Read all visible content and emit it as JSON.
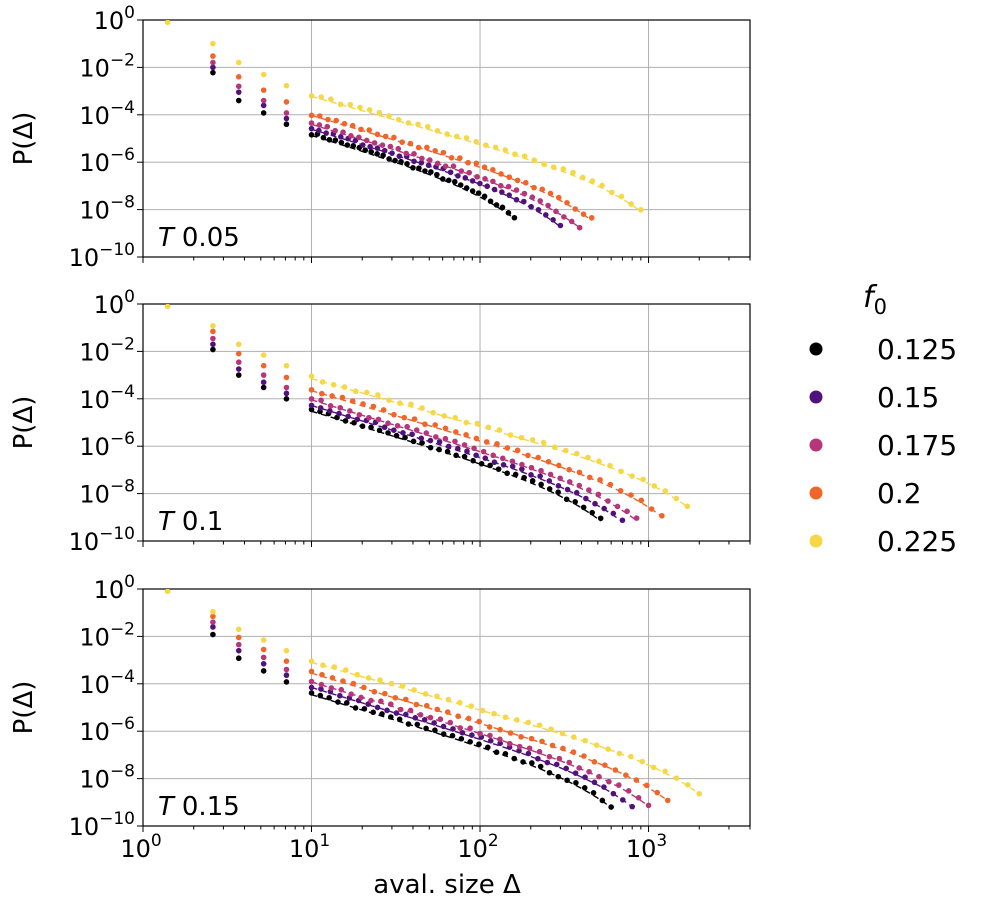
{
  "chart_data": {
    "type": "scatter",
    "xscale": "log",
    "yscale": "log",
    "xlabel": "aval. size Δ",
    "ylabel": "P(Δ)",
    "xlim": [
      1,
      4000
    ],
    "ylim": [
      1e-10,
      1
    ],
    "x_tick_labels": [
      {
        "base": "10",
        "exp": "0"
      },
      {
        "base": "10",
        "exp": "1"
      },
      {
        "base": "10",
        "exp": "2"
      },
      {
        "base": "10",
        "exp": "3"
      }
    ],
    "y_tick_labels": [
      {
        "base": "10",
        "exp": "0"
      },
      {
        "base": "10",
        "exp": "−2"
      },
      {
        "base": "10",
        "exp": "−4"
      },
      {
        "base": "10",
        "exp": "−6"
      },
      {
        "base": "10",
        "exp": "−8"
      },
      {
        "base": "10",
        "exp": "−10"
      }
    ],
    "grid": true,
    "legend": {
      "title_base": "f",
      "title_sub": "0",
      "placement": "right",
      "entries": [
        "0.125",
        "0.15",
        "0.175",
        "0.2",
        "0.225"
      ],
      "colors": [
        "#000004",
        "#51127c",
        "#b63679",
        "#f0652a",
        "#f6d746"
      ]
    },
    "panels": [
      {
        "label_var": "T",
        "label_val": "0.05",
        "series": [
          {
            "name": "0.125",
            "first_points": [
              [
                2.6,
                0.006
              ],
              [
                3.7,
                0.0004
              ],
              [
                5.2,
                0.00012
              ],
              [
                7.1,
                4e-05
              ]
            ],
            "exponent": -2.15,
            "p_at_10": 1.7e-05,
            "fit_at_10": 1.4e-05,
            "xmax": 160
          },
          {
            "name": "0.15",
            "first_points": [
              [
                2.6,
                0.01
              ],
              [
                3.7,
                0.0009
              ],
              [
                5.2,
                0.00025
              ],
              [
                7.1,
                7e-05
              ]
            ],
            "exponent": -2.15,
            "p_at_10": 2.8e-05,
            "fit_at_10": 2.5e-05,
            "xmax": 300
          },
          {
            "name": "0.175",
            "first_points": [
              [
                2.6,
                0.016
              ],
              [
                3.7,
                0.0016
              ],
              [
                5.2,
                0.0004
              ],
              [
                7.1,
                0.00012
              ]
            ],
            "exponent": -2.15,
            "p_at_10": 4.5e-05,
            "fit_at_10": 4e-05,
            "xmax": 390
          },
          {
            "name": "0.2",
            "first_points": [
              [
                2.6,
                0.03
              ],
              [
                3.7,
                0.004
              ],
              [
                5.2,
                0.0011
              ],
              [
                7.1,
                0.00035
              ]
            ],
            "exponent": -2.1,
            "p_at_10": 0.00011,
            "fit_at_10": 9.5e-05,
            "xmax": 460
          },
          {
            "name": "0.225",
            "first_points": [
              [
                1.4,
                0.8
              ],
              [
                2.6,
                0.1
              ],
              [
                3.7,
                0.016
              ],
              [
                5.2,
                0.005
              ],
              [
                7.1,
                0.0017
              ]
            ],
            "exponent": -2.0,
            "p_at_10": 0.0007,
            "fit_at_10": 0.0006,
            "xmax": 900
          }
        ]
      },
      {
        "label_var": "T",
        "label_val": "0.1",
        "series": [
          {
            "name": "0.125",
            "first_points": [
              [
                2.6,
                0.012
              ],
              [
                3.7,
                0.001
              ],
              [
                5.2,
                0.0003
              ],
              [
                7.1,
                0.0001
              ]
            ],
            "exponent": -2.15,
            "p_at_10": 3.5e-05,
            "fit_at_10": 3e-05,
            "xmax": 520
          },
          {
            "name": "0.15",
            "first_points": [
              [
                2.6,
                0.02
              ],
              [
                3.7,
                0.0018
              ],
              [
                5.2,
                0.0005
              ],
              [
                7.1,
                0.00017
              ]
            ],
            "exponent": -2.15,
            "p_at_10": 6e-05,
            "fit_at_10": 5.2e-05,
            "xmax": 700
          },
          {
            "name": "0.175",
            "first_points": [
              [
                2.6,
                0.035
              ],
              [
                3.7,
                0.0035
              ],
              [
                5.2,
                0.001
              ],
              [
                7.1,
                0.0003
              ]
            ],
            "exponent": -2.15,
            "p_at_10": 0.0001,
            "fit_at_10": 9e-05,
            "xmax": 850
          },
          {
            "name": "0.2",
            "first_points": [
              [
                2.6,
                0.07
              ],
              [
                3.7,
                0.008
              ],
              [
                5.2,
                0.0025
              ],
              [
                7.1,
                0.0008
              ]
            ],
            "exponent": -2.1,
            "p_at_10": 0.00025,
            "fit_at_10": 0.00022,
            "xmax": 1200
          },
          {
            "name": "0.225",
            "first_points": [
              [
                1.4,
                0.8
              ],
              [
                2.6,
                0.12
              ],
              [
                3.7,
                0.02
              ],
              [
                5.2,
                0.007
              ],
              [
                7.1,
                0.0025
              ]
            ],
            "exponent": -2.0,
            "p_at_10": 0.0008,
            "fit_at_10": 0.0007,
            "xmax": 1700
          }
        ]
      },
      {
        "label_var": "T",
        "label_val": "0.15",
        "series": [
          {
            "name": "0.125",
            "first_points": [
              [
                2.6,
                0.012
              ],
              [
                3.7,
                0.0012
              ],
              [
                5.2,
                0.00035
              ],
              [
                7.1,
                0.00012
              ]
            ],
            "exponent": -2.15,
            "p_at_10": 4e-05,
            "fit_at_10": 3.5e-05,
            "xmax": 600
          },
          {
            "name": "0.15",
            "first_points": [
              [
                2.6,
                0.025
              ],
              [
                3.7,
                0.0025
              ],
              [
                5.2,
                0.0007
              ],
              [
                7.1,
                0.00023
              ]
            ],
            "exponent": -2.15,
            "p_at_10": 8e-05,
            "fit_at_10": 7e-05,
            "xmax": 800
          },
          {
            "name": "0.175",
            "first_points": [
              [
                2.6,
                0.04
              ],
              [
                3.7,
                0.0045
              ],
              [
                5.2,
                0.0013
              ],
              [
                7.1,
                0.0004
              ]
            ],
            "exponent": -2.15,
            "p_at_10": 0.00013,
            "fit_at_10": 0.00012,
            "xmax": 1000
          },
          {
            "name": "0.2",
            "first_points": [
              [
                2.6,
                0.07
              ],
              [
                3.7,
                0.009
              ],
              [
                5.2,
                0.0028
              ],
              [
                7.1,
                0.0009
              ]
            ],
            "exponent": -2.1,
            "p_at_10": 0.0003,
            "fit_at_10": 0.00028,
            "xmax": 1300
          },
          {
            "name": "0.225",
            "first_points": [
              [
                1.4,
                0.8
              ],
              [
                2.6,
                0.11
              ],
              [
                3.7,
                0.02
              ],
              [
                5.2,
                0.007
              ],
              [
                7.1,
                0.0025
              ]
            ],
            "exponent": -2.0,
            "p_at_10": 0.0009,
            "fit_at_10": 0.0008,
            "xmax": 2000
          }
        ]
      }
    ]
  }
}
